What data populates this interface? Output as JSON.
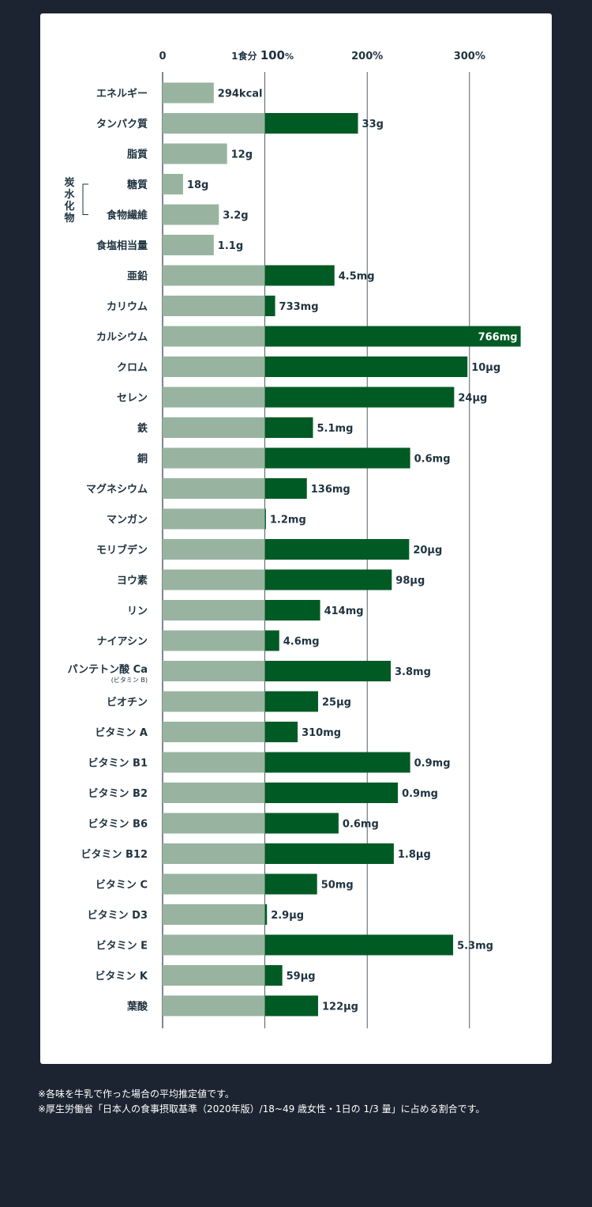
{
  "chart_data": {
    "type": "bar",
    "orientation": "horizontal",
    "x_ticks": [
      {
        "value": 0,
        "label": "0"
      },
      {
        "value": 100,
        "label": "100",
        "prefix": "1食分",
        "unit": "%"
      },
      {
        "value": 200,
        "label": "200%"
      },
      {
        "value": 300,
        "label": "300%"
      }
    ],
    "xlim": [
      0,
      350
    ],
    "grid": true,
    "bracket_label": "炭水化物",
    "colors": {
      "base": "#98b4a0",
      "excess": "#005a24",
      "gridline": "#2a3a44",
      "text": "#1f3340",
      "inside_label": "#ffffff"
    },
    "rows": [
      {
        "category": "エネルギー",
        "value": 50,
        "label": "294kcal"
      },
      {
        "category": "タンパク質",
        "value": 191,
        "label": "33g"
      },
      {
        "category": "脂質",
        "value": 63,
        "label": "12g"
      },
      {
        "category": "糖質",
        "value": 20,
        "label": "18g",
        "group": "炭水化物"
      },
      {
        "category": "食物繊維",
        "value": 55,
        "label": "3.2g",
        "group": "炭水化物"
      },
      {
        "category": "食塩相当量",
        "value": 50,
        "label": "1.1g"
      },
      {
        "category": "亜鉛",
        "value": 168,
        "label": "4.5mg"
      },
      {
        "category": "カリウム",
        "value": 110,
        "label": "733mg"
      },
      {
        "category": "カルシウム",
        "value": 350,
        "label": "766mg"
      },
      {
        "category": "クロム",
        "value": 298,
        "label": "10μg"
      },
      {
        "category": "セレン",
        "value": 285,
        "label": "24μg"
      },
      {
        "category": "鉄",
        "value": 147,
        "label": "5.1mg"
      },
      {
        "category": "銅",
        "value": 242,
        "label": "0.6mg"
      },
      {
        "category": "マグネシウム",
        "value": 141,
        "label": "136mg"
      },
      {
        "category": "マンガン",
        "value": 101,
        "label": "1.2mg"
      },
      {
        "category": "モリブデン",
        "value": 241,
        "label": "20μg"
      },
      {
        "category": "ヨウ素",
        "value": 224,
        "label": "98μg"
      },
      {
        "category": "リン",
        "value": 154,
        "label": "414mg"
      },
      {
        "category": "ナイアシン",
        "value": 114,
        "label": "4.6mg"
      },
      {
        "category": "パンテトン酸 Ca",
        "subcategory": "(ビタミン B)",
        "value": 223,
        "label": "3.8mg"
      },
      {
        "category": "ビオチン",
        "value": 152,
        "label": "25μg"
      },
      {
        "category": "ビタミン A",
        "value": 132,
        "label": "310mg"
      },
      {
        "category": "ビタミン B1",
        "value": 242,
        "label": "0.9mg"
      },
      {
        "category": "ビタミン B2",
        "value": 230,
        "label": "0.9mg"
      },
      {
        "category": "ビタミン B6",
        "value": 172,
        "label": "0.6mg"
      },
      {
        "category": "ビタミン B12",
        "value": 226,
        "label": "1.8μg"
      },
      {
        "category": "ビタミン C",
        "value": 151,
        "label": "50mg"
      },
      {
        "category": "ビタミン D3",
        "value": 102,
        "label": "2.9μg"
      },
      {
        "category": "ビタミン E",
        "value": 284,
        "label": "5.3mg"
      },
      {
        "category": "ビタミン K",
        "value": 117,
        "label": "59μg"
      },
      {
        "category": "葉酸",
        "value": 152,
        "label": "122μg"
      }
    ]
  },
  "notes": [
    "※各味を牛乳で作った場合の平均推定値です。",
    "※厚生労働省「日本人の食事摂取基準（2020年版）/18~49 歳女性・1日の 1/3 量」に占める割合です。"
  ]
}
